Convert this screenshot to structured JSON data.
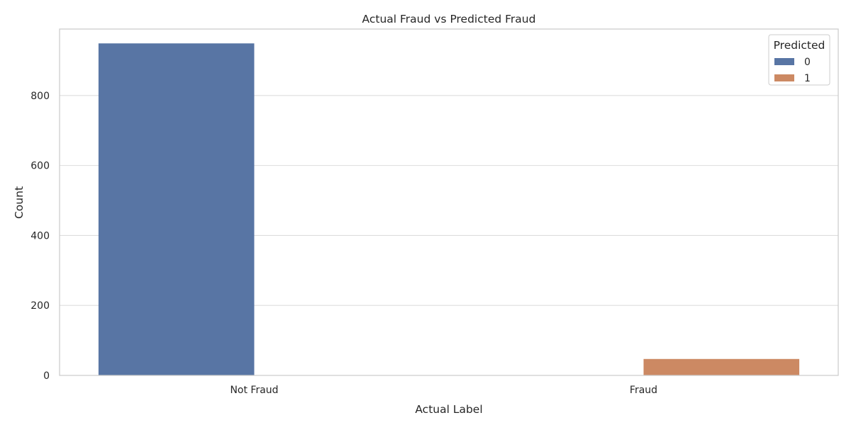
{
  "chart_data": {
    "type": "bar",
    "title": "Actual Fraud vs Predicted Fraud",
    "xlabel": "Actual Label",
    "ylabel": "Count",
    "categories": [
      "Not Fraud",
      "Fraud"
    ],
    "series": [
      {
        "name": "0",
        "values": [
          949,
          0
        ],
        "color": "#5875a4"
      },
      {
        "name": "1",
        "values": [
          0,
          47
        ],
        "color": "#cc8963"
      }
    ],
    "ylim": [
      0,
      990
    ],
    "yticks": [
      0,
      200,
      400,
      600,
      800
    ],
    "grid": true,
    "legend": {
      "title": "Predicted",
      "position": "top-right"
    }
  }
}
